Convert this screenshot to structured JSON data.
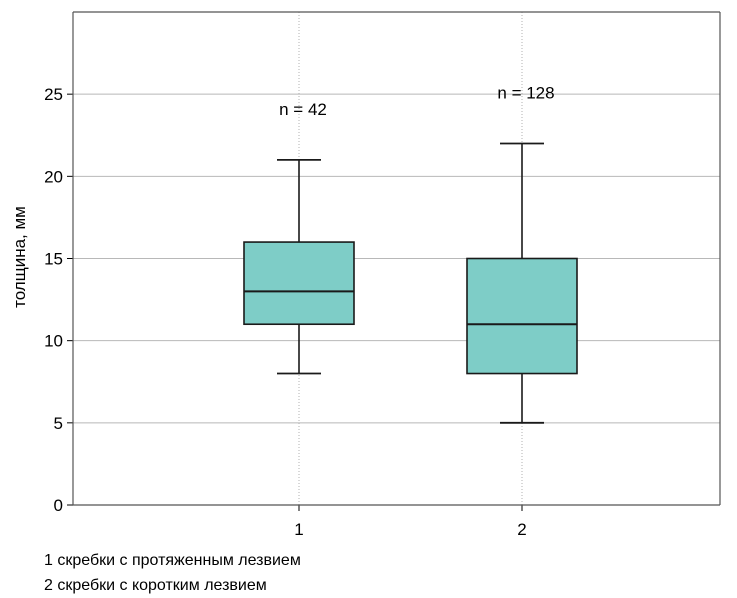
{
  "chart_data": {
    "type": "box",
    "ylabel": "толщина, мм",
    "xlabel": "",
    "ylim": [
      0,
      30
    ],
    "yticks": [
      "0",
      "5",
      "10",
      "15",
      "20",
      "25"
    ],
    "grid": true,
    "categories": [
      "1",
      "2"
    ],
    "boxes": [
      {
        "category": "1",
        "min": 8,
        "q1": 11,
        "median": 13,
        "q3": 16,
        "max": 21,
        "annotation": "n = 42"
      },
      {
        "category": "2",
        "min": 5,
        "q1": 8,
        "median": 11,
        "q3": 15,
        "max": 22,
        "annotation": "n = 128"
      }
    ],
    "box_color": "#7ecdc7"
  },
  "legend": [
    "1  скребки с протяженным лезвием",
    "2  скребки с коротким лезвием"
  ]
}
